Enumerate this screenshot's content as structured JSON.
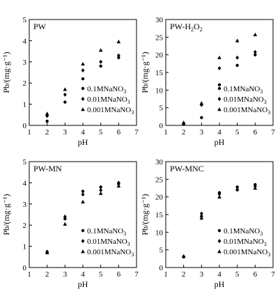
{
  "chart_data": [
    {
      "type": "scatter",
      "title": "PW",
      "xlabel": "pH",
      "ylabel": "Pb/(mg·g⁻¹)",
      "xlim": [
        1,
        7
      ],
      "ylim": [
        0,
        5
      ],
      "xticks": [
        "1",
        "2",
        "3",
        "4",
        "5",
        "6",
        "7"
      ],
      "yticks": [
        "0",
        "1",
        "2",
        "3",
        "4",
        "5"
      ],
      "legend_position": "right",
      "series": [
        {
          "name": "0.1MNaNO3",
          "marker": "circle",
          "x": [
            2,
            3,
            4,
            5,
            6
          ],
          "y": [
            0.2,
            1.1,
            2.2,
            2.8,
            3.2
          ]
        },
        {
          "name": "0.01MNaNO3",
          "marker": "diamond",
          "x": [
            2,
            3,
            4,
            5,
            6
          ],
          "y": [
            0.45,
            1.45,
            2.6,
            3.0,
            3.3
          ]
        },
        {
          "name": "0.001MNaNO3",
          "marker": "triangle",
          "x": [
            2,
            3,
            4,
            5,
            6
          ],
          "y": [
            0.55,
            1.7,
            2.9,
            3.55,
            3.95
          ]
        }
      ]
    },
    {
      "type": "scatter",
      "title": "PW-H2O2",
      "xlabel": "pH",
      "ylabel": "Pb/(mg·g⁻¹)",
      "xlim": [
        1,
        7
      ],
      "ylim": [
        0,
        30
      ],
      "xticks": [
        "1",
        "2",
        "3",
        "4",
        "5",
        "6",
        "7"
      ],
      "yticks": [
        "0",
        "5",
        "10",
        "15",
        "20",
        "25",
        "30"
      ],
      "legend_position": "right",
      "series": [
        {
          "name": "0.1MNaNO3",
          "marker": "circle",
          "x": [
            2,
            3,
            4,
            5,
            6
          ],
          "y": [
            0.3,
            2.2,
            11.5,
            17.0,
            20.0
          ]
        },
        {
          "name": "0.01MNaNO3",
          "marker": "diamond",
          "x": [
            2,
            3,
            4,
            5,
            6
          ],
          "y": [
            0.6,
            5.8,
            16.2,
            19.2,
            20.8
          ]
        },
        {
          "name": "0.001MNaNO3",
          "marker": "triangle",
          "x": [
            2,
            3,
            4,
            5,
            6
          ],
          "y": [
            0.8,
            6.3,
            19.2,
            24.0,
            25.7
          ]
        }
      ]
    },
    {
      "type": "scatter",
      "title": "PW-MN",
      "xlabel": "pH",
      "ylabel": "Pb/(mg·g⁻¹)",
      "xlim": [
        1,
        7
      ],
      "ylim": [
        0,
        5
      ],
      "xticks": [
        "1",
        "2",
        "3",
        "4",
        "5",
        "6",
        "7"
      ],
      "yticks": [
        "0",
        "1",
        "2",
        "3",
        "4",
        "5"
      ],
      "legend_position": "right",
      "series": [
        {
          "name": "0.1MNaNO3",
          "marker": "circle",
          "x": [
            2,
            3,
            4,
            5,
            6
          ],
          "y": [
            0.7,
            2.3,
            3.6,
            3.8,
            3.95
          ]
        },
        {
          "name": "0.01MNaNO3",
          "marker": "diamond",
          "x": [
            2,
            3,
            4,
            5,
            6
          ],
          "y": [
            0.75,
            2.4,
            3.45,
            3.65,
            4.0
          ]
        },
        {
          "name": "0.001MNaNO3",
          "marker": "triangle",
          "x": [
            2,
            3,
            4,
            5,
            6
          ],
          "y": [
            0.7,
            2.05,
            3.1,
            3.5,
            3.85
          ]
        }
      ]
    },
    {
      "type": "scatter",
      "title": "PW-MNC",
      "xlabel": "pH",
      "ylabel": "Pb/(mg·g⁻¹)",
      "xlim": [
        1,
        7
      ],
      "ylim": [
        0,
        30
      ],
      "xticks": [
        "1",
        "2",
        "3",
        "4",
        "5",
        "6",
        "7"
      ],
      "yticks": [
        "0",
        "5",
        "10",
        "15",
        "20",
        "25",
        "30"
      ],
      "legend_position": "right",
      "series": [
        {
          "name": "0.1MNaNO3",
          "marker": "circle",
          "x": [
            2,
            3,
            4,
            5,
            6
          ],
          "y": [
            3.0,
            14.5,
            21.2,
            22.8,
            23.5
          ]
        },
        {
          "name": "0.01MNaNO3",
          "marker": "diamond",
          "x": [
            2,
            3,
            4,
            5,
            6
          ],
          "y": [
            3.1,
            15.3,
            20.8,
            22.0,
            23.0
          ]
        },
        {
          "name": "0.001MNaNO3",
          "marker": "triangle",
          "x": [
            2,
            3,
            4,
            5,
            6
          ],
          "y": [
            3.2,
            14.0,
            20.0,
            22.3,
            22.5
          ]
        }
      ]
    }
  ]
}
